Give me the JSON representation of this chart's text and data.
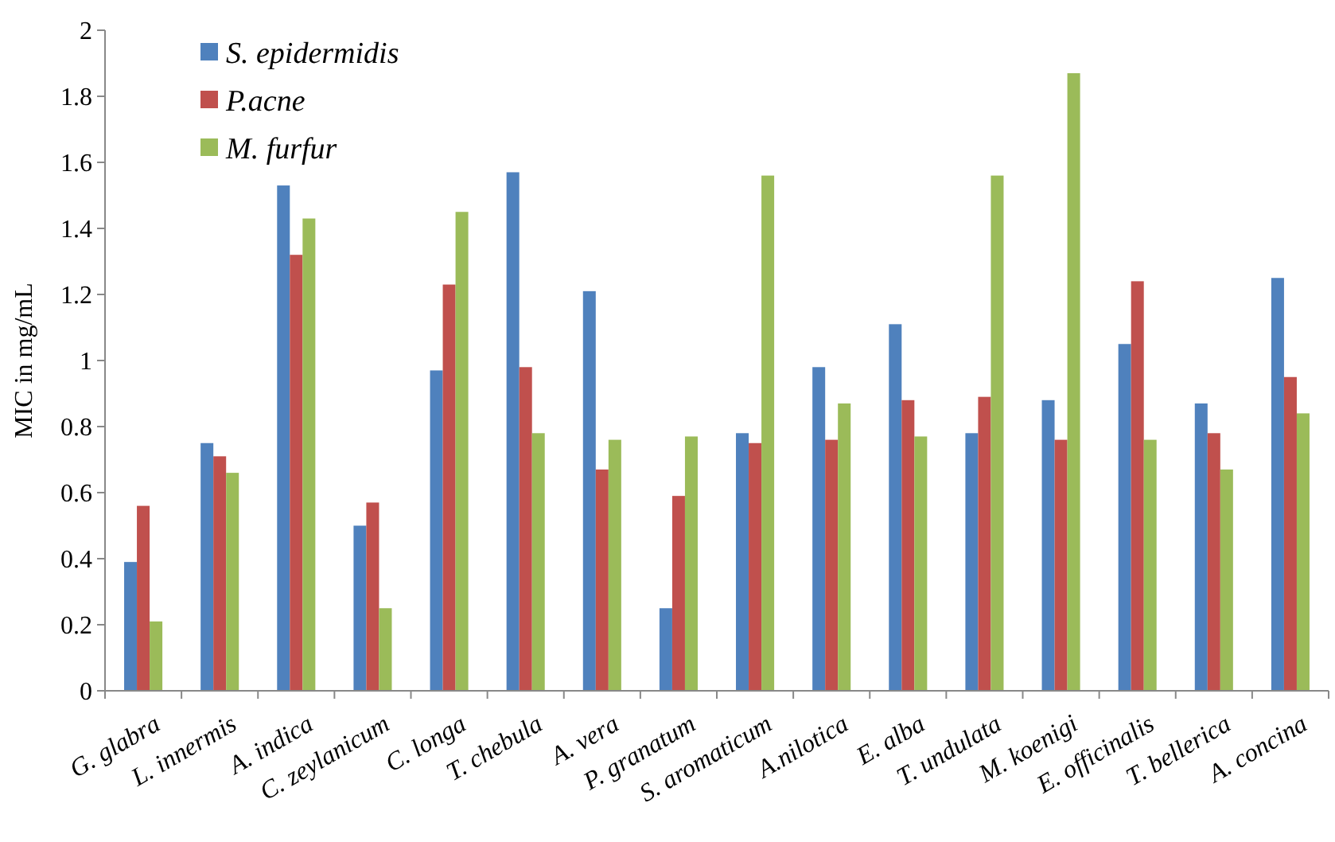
{
  "chart_data": {
    "type": "bar",
    "ylabel": "MIC in mg/mL",
    "categories": [
      "G. glabra",
      "L. innermis",
      "A. indica",
      "C. zeylanicum",
      "C. longa",
      "T. chebula",
      "A. vera",
      "P. granatum",
      "S. aromaticum",
      "A.nilotica",
      "E. alba",
      "T. undulata",
      "M. koenigi",
      "E. officinalis",
      "T. bellerica",
      "A. concina"
    ],
    "series": [
      {
        "name": "S. epidermidis",
        "color": "#4f81bd",
        "values": [
          0.39,
          0.75,
          1.53,
          0.5,
          0.97,
          1.57,
          1.21,
          0.25,
          0.78,
          0.98,
          1.11,
          0.78,
          0.88,
          1.05,
          0.87,
          1.25
        ]
      },
      {
        "name": "P.acne",
        "color": "#c0504d",
        "values": [
          0.56,
          0.71,
          1.32,
          0.57,
          1.23,
          0.98,
          0.67,
          0.59,
          0.75,
          0.76,
          0.88,
          0.89,
          0.76,
          1.24,
          0.78,
          0.95
        ]
      },
      {
        "name": "M. furfur",
        "color": "#9bbb59",
        "values": [
          0.21,
          0.66,
          1.43,
          0.25,
          1.45,
          0.78,
          0.76,
          0.77,
          1.56,
          0.87,
          0.77,
          1.56,
          1.87,
          0.76,
          0.67,
          0.84
        ]
      }
    ],
    "ylim": [
      0,
      2
    ],
    "yticks": [
      0,
      0.2,
      0.4,
      0.6,
      0.8,
      1,
      1.2,
      1.4,
      1.6,
      1.8,
      2
    ],
    "grid": false,
    "legend": "top left"
  }
}
